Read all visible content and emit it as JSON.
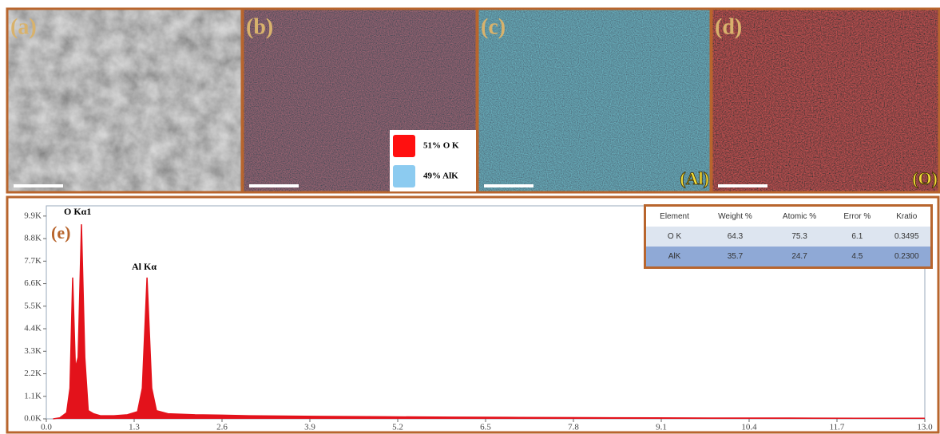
{
  "panels": [
    {
      "label": "(a)"
    },
    {
      "label": "(b)",
      "legend": [
        {
          "label": "51% O K",
          "color": "#ff1010"
        },
        {
          "label": "49% AlK",
          "color": "#8ccbf0"
        }
      ]
    },
    {
      "label": "(c)",
      "element": "(Al)"
    },
    {
      "label": "(d)",
      "element": "(O)"
    }
  ],
  "chart_data": {
    "type": "area",
    "label": "(e)",
    "color": "#e3121b",
    "x": [
      0.1,
      0.2,
      0.3,
      0.35,
      0.39,
      0.43,
      0.47,
      0.52,
      0.57,
      0.62,
      0.7,
      0.8,
      1.0,
      1.2,
      1.35,
      1.42,
      1.49,
      1.56,
      1.63,
      1.8,
      2.2,
      2.6,
      3.0,
      4.0,
      5.0,
      6.0,
      7.0,
      8.0,
      9.0,
      10.0,
      11.0,
      12.0,
      13.0
    ],
    "values": [
      0,
      50,
      300,
      1500,
      6900,
      2500,
      3000,
      9500,
      3000,
      400,
      250,
      150,
      150,
      200,
      350,
      1500,
      6900,
      1500,
      400,
      250,
      200,
      180,
      150,
      120,
      100,
      80,
      70,
      60,
      50,
      40,
      40,
      30,
      30
    ],
    "annotations": [
      "O Kα1",
      "Al Kα"
    ],
    "xlim": [
      0,
      13
    ],
    "xticks": [
      {
        "value": 0,
        "label": "0.0"
      },
      1.3,
      2.6,
      3.9,
      5.2,
      6.5,
      7.8,
      9.1,
      10.4,
      11.7,
      {
        "value": 13,
        "label": "13.0"
      }
    ],
    "ylim": [
      0,
      10400
    ],
    "yticks": [
      {
        "value": 0,
        "label": "0.0K"
      },
      {
        "value": 1100,
        "label": "1.1K"
      },
      {
        "value": 2200,
        "label": "2.2K"
      },
      {
        "value": 3300,
        "label": "3.3K"
      },
      {
        "value": 4400,
        "label": "4.4K"
      },
      {
        "value": 5500,
        "label": "5.5K"
      },
      {
        "value": 6600,
        "label": "6.6K"
      },
      {
        "value": 7700,
        "label": "7.7K"
      },
      {
        "value": 8800,
        "label": "8.8K"
      },
      {
        "value": 9900,
        "label": "9.9K"
      }
    ]
  },
  "table": {
    "header": [
      "Element",
      "Weight %",
      "Atomic %",
      "Error %",
      "Kratio"
    ],
    "rows": [
      [
        "O K",
        "64.3",
        "75.3",
        "6.1",
        "0.3495"
      ],
      [
        "AlK",
        "35.7",
        "24.7",
        "4.5",
        "0.2300"
      ]
    ]
  }
}
